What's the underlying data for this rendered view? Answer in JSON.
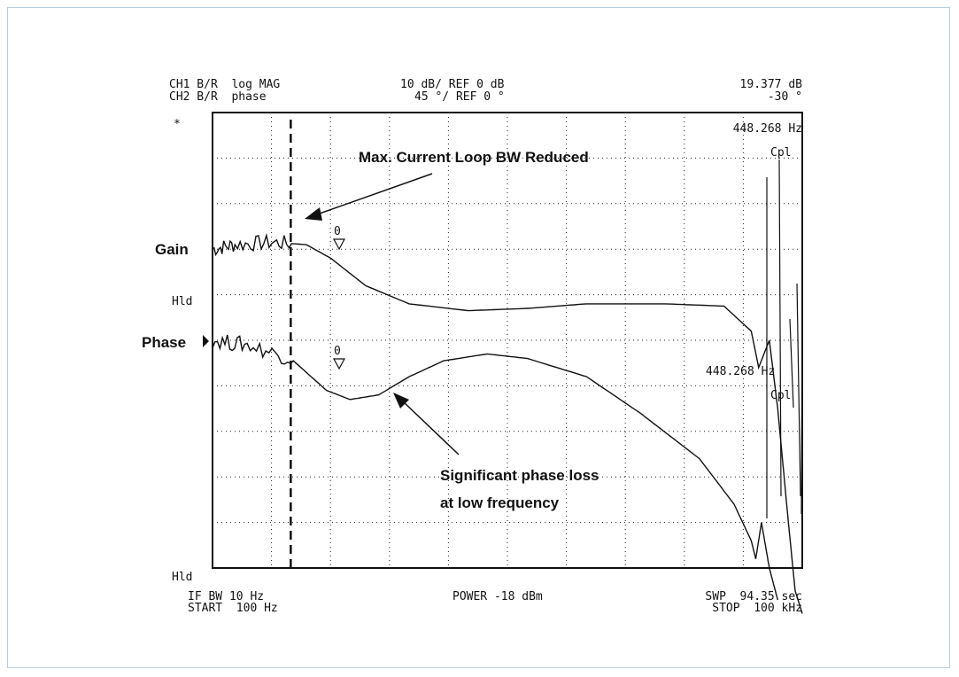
{
  "header": {
    "ch1_line": "CH1 B/R  log MAG",
    "ch2_line": "CH2 B/R  phase",
    "ch1_scale": "10 dB/ REF 0 dB",
    "ch2_scale": "45 °/ REF 0 °",
    "ch1_marker_value": "19.377 dB",
    "ch2_marker_value": "-30 °"
  },
  "asterisk": "*",
  "marker_freq_top": "448.268 Hz",
  "marker_freq_bottom": "448.268 Hz",
  "cpl_top": "Cpl",
  "cpl_bottom": "Cpl",
  "marker_label_top": "0",
  "marker_label_bottom": "0",
  "labels": {
    "gain": "Gain",
    "phase": "Phase",
    "hld_mid": "Hld",
    "hld_bottom": "Hld"
  },
  "annotations": {
    "bw_reduced": "Max. Current Loop BW Reduced",
    "phase_loss_line1": "Significant phase loss",
    "phase_loss_line2": "at low frequency"
  },
  "footer": {
    "if_bw": "IF BW 10 Hz",
    "start": "START  100 Hz",
    "power": "POWER -18 dBm",
    "sweep": "SWP  94.35 sec",
    "stop": "STOP  100 kHz"
  },
  "chart_data": {
    "type": "line",
    "x_scale": "log",
    "xlim_hz": [
      100,
      100000
    ],
    "grid": true,
    "vertical_divisions": 10,
    "horizontal_divisions": 10,
    "dashed_marker_hz": 250,
    "series": [
      {
        "name": "Gain",
        "color": "#111111",
        "points": [
          [
            100,
            0.0
          ],
          [
            130,
            0.1
          ],
          [
            200,
            0.15
          ],
          [
            300,
            0.1
          ],
          [
            400,
            -0.2
          ],
          [
            600,
            -0.8
          ],
          [
            1000,
            -1.2
          ],
          [
            2000,
            -1.35
          ],
          [
            4000,
            -1.3
          ],
          [
            8000,
            -1.2
          ],
          [
            20000,
            -1.2
          ],
          [
            40000,
            -1.25
          ],
          [
            55000,
            -1.8
          ],
          [
            60000,
            -2.6
          ],
          [
            68000,
            -2.0
          ],
          [
            75000,
            -3.5
          ],
          [
            85000,
            -6.0
          ],
          [
            92000,
            -7.5
          ],
          [
            100000,
            -8.0
          ]
        ]
      },
      {
        "name": "Phase",
        "color": "#111111",
        "points": [
          [
            100,
            0.0
          ],
          [
            150,
            -0.1
          ],
          [
            250,
            -0.4
          ],
          [
            380,
            -1.1
          ],
          [
            500,
            -1.3
          ],
          [
            700,
            -1.2
          ],
          [
            1000,
            -0.8
          ],
          [
            1500,
            -0.45
          ],
          [
            2500,
            -0.3
          ],
          [
            4000,
            -0.4
          ],
          [
            8000,
            -0.8
          ],
          [
            15000,
            -1.6
          ],
          [
            30000,
            -2.6
          ],
          [
            45000,
            -3.6
          ],
          [
            55000,
            -4.4
          ],
          [
            58000,
            -4.8
          ],
          [
            62000,
            -4.0
          ],
          [
            68000,
            -5.0
          ],
          [
            75000,
            -5.7
          ]
        ]
      }
    ]
  }
}
